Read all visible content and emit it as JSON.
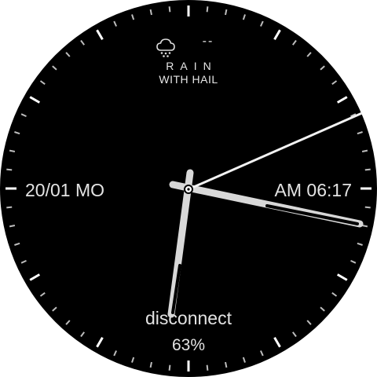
{
  "watchface": {
    "weather": {
      "icon": "cloud-hail-icon",
      "temperature": "--",
      "condition_line1": "RAIN",
      "condition_line2": "WITH HAIL"
    },
    "date": "20/01 MO",
    "time": "AM 06:17",
    "connection_status": "disconnect",
    "battery": "63%",
    "hands": {
      "hour": "06:17",
      "second_fraction": 0.2
    },
    "colors": {
      "dial": "#000000",
      "text": "#e3e3e3",
      "hands": "#dcdcdc"
    }
  }
}
